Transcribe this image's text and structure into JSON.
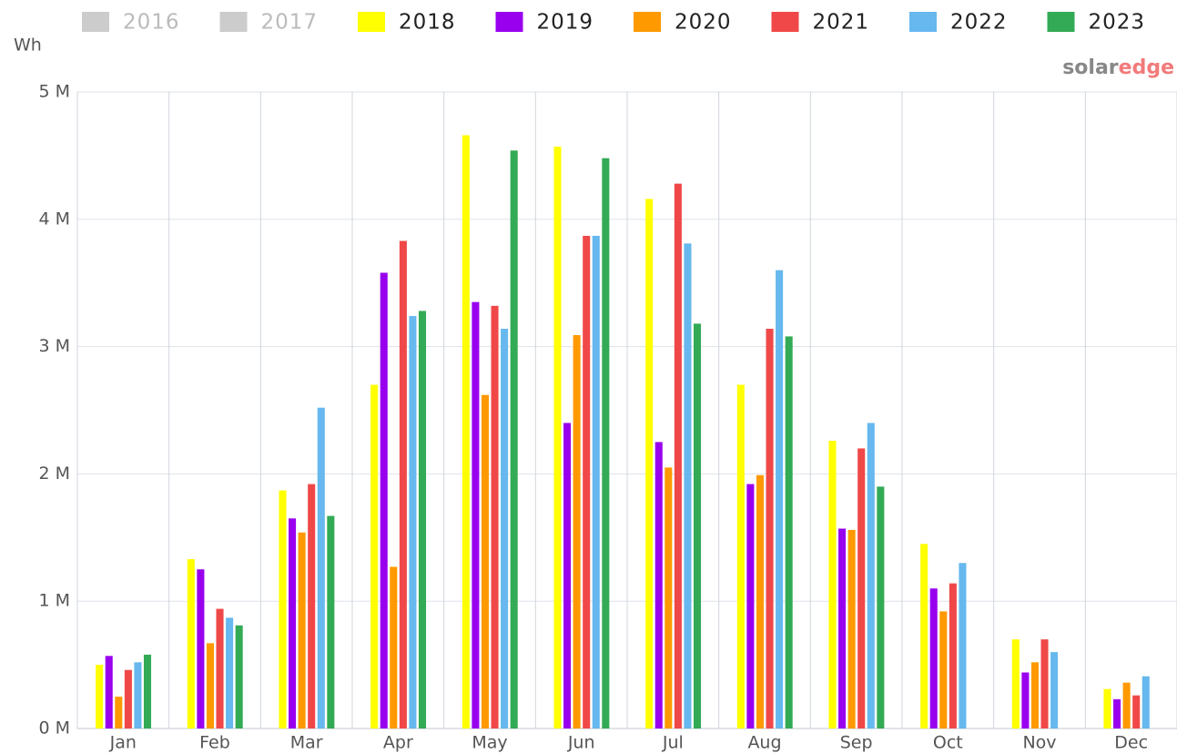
{
  "chart_data": {
    "type": "bar",
    "y_label": "Wh",
    "brand": {
      "first": "solar",
      "second": "edge"
    },
    "categories": [
      "Jan",
      "Feb",
      "Mar",
      "Apr",
      "May",
      "Jun",
      "Jul",
      "Aug",
      "Sep",
      "Oct",
      "Nov",
      "Dec"
    ],
    "ylim": [
      0,
      5000000
    ],
    "yticks": [
      {
        "value": 0,
        "label": "0 M"
      },
      {
        "value": 1000000,
        "label": "1 M"
      },
      {
        "value": 2000000,
        "label": "2 M"
      },
      {
        "value": 3000000,
        "label": "3 M"
      },
      {
        "value": 4000000,
        "label": "4 M"
      },
      {
        "value": 5000000,
        "label": "5 M"
      }
    ],
    "grid": true,
    "legend": "top",
    "series": [
      {
        "name": "2016",
        "color": "#cccccc",
        "visible": false,
        "values": [
          null,
          null,
          null,
          null,
          null,
          null,
          null,
          null,
          null,
          null,
          null,
          null
        ]
      },
      {
        "name": "2017",
        "color": "#cccccc",
        "visible": false,
        "values": [
          null,
          null,
          null,
          null,
          null,
          null,
          null,
          null,
          null,
          null,
          null,
          null
        ]
      },
      {
        "name": "2018",
        "color": "#ffff00",
        "visible": true,
        "values": [
          500000,
          1330000,
          1870000,
          2700000,
          4660000,
          4570000,
          4160000,
          2700000,
          2260000,
          1450000,
          700000,
          310000
        ]
      },
      {
        "name": "2019",
        "color": "#9900ee",
        "visible": true,
        "values": [
          570000,
          1250000,
          1650000,
          3580000,
          3350000,
          2400000,
          2250000,
          1920000,
          1570000,
          1100000,
          440000,
          230000
        ]
      },
      {
        "name": "2020",
        "color": "#ff9900",
        "visible": true,
        "values": [
          250000,
          670000,
          1540000,
          1270000,
          2620000,
          3090000,
          2050000,
          1990000,
          1560000,
          920000,
          520000,
          360000
        ]
      },
      {
        "name": "2021",
        "color": "#f04848",
        "visible": true,
        "values": [
          460000,
          940000,
          1920000,
          3830000,
          3320000,
          3870000,
          4280000,
          3140000,
          2200000,
          1140000,
          700000,
          260000
        ]
      },
      {
        "name": "2022",
        "color": "#66b8ee",
        "visible": true,
        "values": [
          520000,
          870000,
          2520000,
          3240000,
          3140000,
          3870000,
          3810000,
          3600000,
          2400000,
          1300000,
          600000,
          410000
        ]
      },
      {
        "name": "2023",
        "color": "#33aa55",
        "visible": true,
        "values": [
          580000,
          810000,
          1670000,
          3280000,
          4540000,
          4480000,
          3180000,
          3080000,
          1900000,
          null,
          null,
          null
        ]
      }
    ]
  }
}
